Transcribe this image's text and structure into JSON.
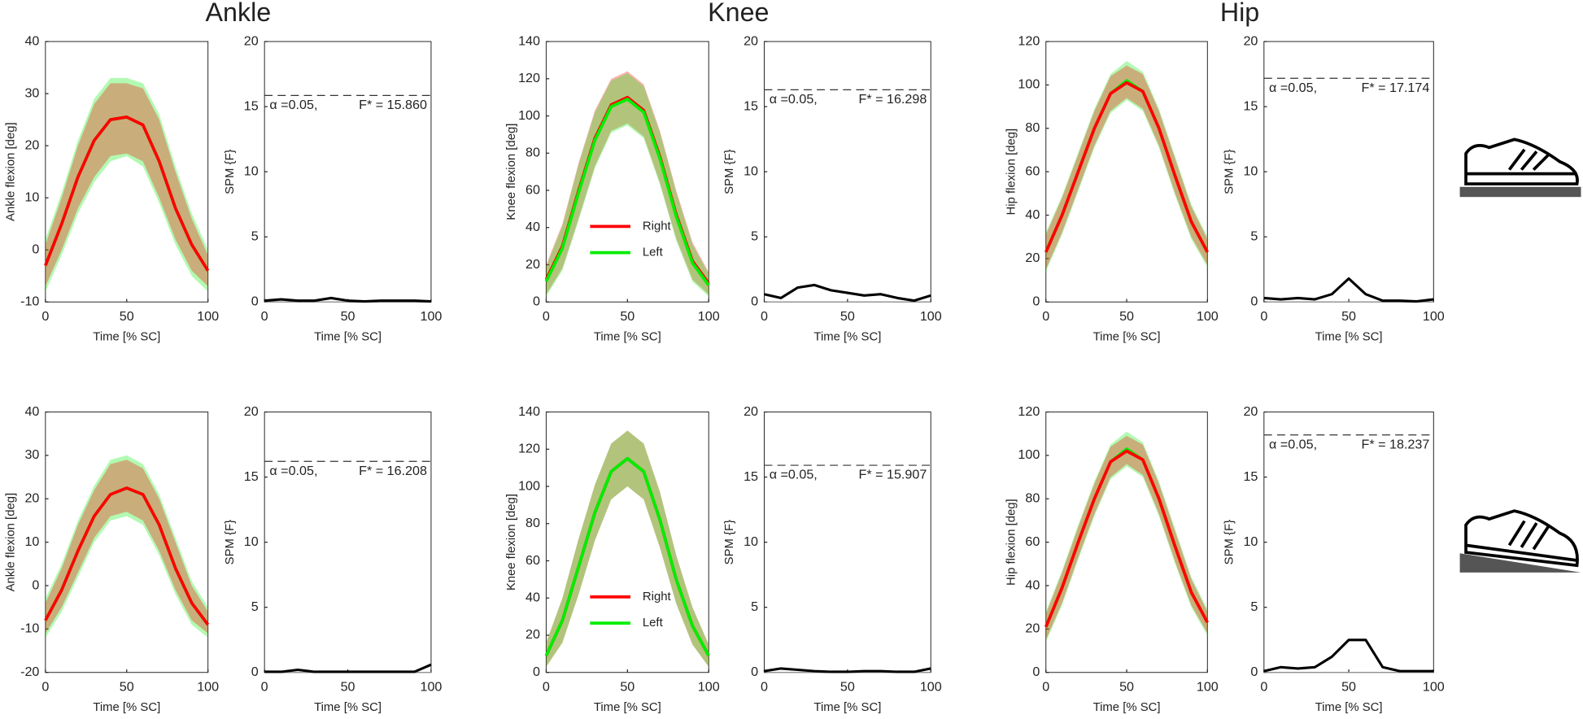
{
  "columns": [
    "Ankle",
    "Knee",
    "Hip"
  ],
  "chart_data": [
    {
      "type": "line",
      "xlabel": "Time [% SC]",
      "ylabel": "Ankle flexion [deg]",
      "xlim": [
        0,
        100
      ],
      "ylim": [
        -10,
        40
      ],
      "xticks": [
        0,
        50,
        100
      ],
      "yticks": [
        -10,
        0,
        10,
        20,
        30,
        40
      ],
      "x": [
        0,
        10,
        20,
        30,
        40,
        50,
        60,
        70,
        80,
        90,
        100
      ],
      "series": [
        {
          "color": "#00ee00",
          "values": [
            -3,
            5,
            14,
            21,
            25,
            25.5,
            24,
            17,
            8,
            1,
            -4
          ],
          "upper": [
            2,
            11,
            21,
            29,
            33,
            33,
            32,
            26,
            16,
            7,
            0
          ],
          "lower": [
            -8,
            -1,
            7,
            13,
            17,
            18,
            16,
            9,
            1,
            -5,
            -8
          ]
        },
        {
          "color": "#ff0000",
          "values": [
            -3,
            5,
            14,
            21,
            25,
            25.5,
            24,
            17,
            8,
            1,
            -4
          ],
          "upper": [
            1,
            10,
            20,
            28,
            32,
            32,
            31,
            25,
            15,
            6,
            -1
          ],
          "lower": [
            -7,
            0,
            8,
            14,
            18,
            18.5,
            17,
            10,
            2,
            -4,
            -7
          ]
        }
      ]
    },
    {
      "type": "spm",
      "xlabel": "Time [% SC]",
      "ylabel": "SPM {F}",
      "xlim": [
        0,
        100
      ],
      "ylim": [
        0,
        20
      ],
      "xticks": [
        0,
        50,
        100
      ],
      "yticks": [
        0,
        5,
        10,
        15,
        20
      ],
      "x": [
        0,
        10,
        20,
        30,
        40,
        50,
        60,
        70,
        80,
        90,
        100
      ],
      "values": [
        0.1,
        0.2,
        0.1,
        0.1,
        0.3,
        0.1,
        0.05,
        0.1,
        0.1,
        0.1,
        0.05
      ],
      "threshold": 15.86,
      "threshold_label": "F* = 15.860",
      "alpha_label": "α =0.05,"
    },
    {
      "type": "line",
      "xlabel": "Time [% SC]",
      "ylabel": "Knee flexion [deg]",
      "xlim": [
        0,
        100
      ],
      "ylim": [
        0,
        140
      ],
      "xticks": [
        0,
        50,
        100
      ],
      "yticks": [
        0,
        20,
        40,
        60,
        80,
        100,
        120,
        140
      ],
      "x": [
        0,
        10,
        20,
        30,
        40,
        50,
        60,
        70,
        80,
        90,
        100
      ],
      "legend": "lower left",
      "series": [
        {
          "name": "Right",
          "color": "#ff0000",
          "values": [
            12,
            30,
            60,
            88,
            106,
            110,
            103,
            78,
            47,
            22,
            10
          ],
          "upper": [
            20,
            42,
            75,
            103,
            120,
            124,
            117,
            92,
            60,
            32,
            16
          ],
          "lower": [
            4,
            18,
            45,
            73,
            92,
            96,
            89,
            64,
            34,
            12,
            4
          ]
        },
        {
          "name": "Left",
          "color": "#00ee00",
          "values": [
            11,
            29,
            59,
            87,
            105,
            109,
            102,
            77,
            46,
            21,
            9
          ],
          "upper": [
            19,
            41,
            74,
            102,
            119,
            123,
            116,
            91,
            59,
            31,
            15
          ],
          "lower": [
            3,
            17,
            44,
            72,
            91,
            95,
            88,
            63,
            33,
            11,
            3
          ]
        }
      ]
    },
    {
      "type": "spm",
      "xlabel": "Time [% SC]",
      "ylabel": "SPM {F}",
      "xlim": [
        0,
        100
      ],
      "ylim": [
        0,
        20
      ],
      "xticks": [
        0,
        50,
        100
      ],
      "yticks": [
        0,
        5,
        10,
        15,
        20
      ],
      "x": [
        0,
        10,
        20,
        30,
        40,
        50,
        60,
        70,
        80,
        90,
        100
      ],
      "values": [
        0.6,
        0.3,
        1.1,
        1.3,
        0.9,
        0.7,
        0.5,
        0.6,
        0.3,
        0.1,
        0.5
      ],
      "threshold": 16.298,
      "threshold_label": "F* = 16.298",
      "alpha_label": "α =0.05,"
    },
    {
      "type": "line",
      "xlabel": "Time [% SC]",
      "ylabel": "Hip flexion [deg]",
      "xlim": [
        0,
        100
      ],
      "ylim": [
        0,
        120
      ],
      "xticks": [
        0,
        50,
        100
      ],
      "yticks": [
        0,
        20,
        40,
        60,
        80,
        100,
        120
      ],
      "x": [
        0,
        10,
        20,
        30,
        40,
        50,
        60,
        70,
        80,
        90,
        100
      ],
      "series": [
        {
          "color": "#00ee00",
          "values": [
            23,
            40,
            60,
            80,
            96,
            102,
            97,
            80,
            58,
            37,
            23
          ],
          "upper": [
            32,
            49,
            69,
            89,
            105,
            111,
            106,
            89,
            67,
            45,
            30
          ],
          "lower": [
            14,
            31,
            51,
            71,
            87,
            93,
            88,
            71,
            49,
            29,
            16
          ]
        },
        {
          "color": "#ff0000",
          "values": [
            23,
            40,
            60,
            80,
            96,
            101,
            97,
            80,
            58,
            37,
            23
          ],
          "upper": [
            31,
            48,
            68,
            88,
            104,
            109,
            105,
            88,
            66,
            44,
            29
          ],
          "lower": [
            15,
            32,
            52,
            72,
            88,
            94,
            89,
            72,
            50,
            30,
            17
          ]
        }
      ]
    },
    {
      "type": "spm",
      "xlabel": "Time [% SC]",
      "ylabel": "SPM {F}",
      "xlim": [
        0,
        100
      ],
      "ylim": [
        0,
        20
      ],
      "xticks": [
        0,
        50,
        100
      ],
      "yticks": [
        0,
        5,
        10,
        15,
        20
      ],
      "x": [
        0,
        10,
        20,
        30,
        40,
        50,
        60,
        70,
        80,
        90,
        100
      ],
      "values": [
        0.3,
        0.2,
        0.3,
        0.2,
        0.6,
        1.8,
        0.6,
        0.1,
        0.1,
        0.05,
        0.2
      ],
      "threshold": 17.174,
      "threshold_label": "F* = 17.174",
      "alpha_label": "α =0.05,"
    },
    {
      "type": "line",
      "xlabel": "Time [% SC]",
      "ylabel": "Ankle flexion [deg]",
      "xlim": [
        0,
        100
      ],
      "ylim": [
        -20,
        40
      ],
      "xticks": [
        0,
        50,
        100
      ],
      "yticks": [
        -20,
        -10,
        0,
        10,
        20,
        30,
        40
      ],
      "x": [
        0,
        10,
        20,
        30,
        40,
        50,
        60,
        70,
        80,
        90,
        100
      ],
      "series": [
        {
          "color": "#00ee00",
          "values": [
            -8,
            -1,
            8,
            16,
            21,
            22.5,
            21,
            14,
            4,
            -4,
            -9
          ],
          "upper": [
            -3,
            5,
            15,
            23,
            29,
            30,
            28,
            21,
            11,
            1,
            -5
          ],
          "lower": [
            -12,
            -6,
            2,
            10,
            15,
            16,
            14,
            7,
            -2,
            -9,
            -12
          ]
        },
        {
          "color": "#ff0000",
          "values": [
            -8,
            -1,
            8,
            16,
            21,
            22.5,
            21,
            14,
            4,
            -4,
            -9
          ],
          "upper": [
            -4,
            4,
            14,
            22,
            28,
            29,
            27,
            20,
            10,
            0,
            -6
          ],
          "lower": [
            -11,
            -5,
            3,
            11,
            16,
            17,
            15,
            8,
            -1,
            -8,
            -11
          ]
        }
      ]
    },
    {
      "type": "spm",
      "xlabel": "Time [% SC]",
      "ylabel": "SPM {F}",
      "xlim": [
        0,
        100
      ],
      "ylim": [
        0,
        20
      ],
      "xticks": [
        0,
        50,
        100
      ],
      "yticks": [
        0,
        5,
        10,
        15,
        20
      ],
      "x": [
        0,
        10,
        20,
        30,
        40,
        50,
        60,
        70,
        80,
        90,
        100
      ],
      "values": [
        0.05,
        0.05,
        0.2,
        0.05,
        0.05,
        0.05,
        0.05,
        0.05,
        0.05,
        0.05,
        0.6
      ],
      "threshold": 16.208,
      "threshold_label": "F* = 16.208",
      "alpha_label": "α =0.05,"
    },
    {
      "type": "line",
      "xlabel": "Time [% SC]",
      "ylabel": "Knee flexion [deg]",
      "xlim": [
        0,
        100
      ],
      "ylim": [
        0,
        140
      ],
      "xticks": [
        0,
        50,
        100
      ],
      "yticks": [
        0,
        20,
        40,
        60,
        80,
        100,
        120,
        140
      ],
      "x": [
        0,
        10,
        20,
        30,
        40,
        50,
        60,
        70,
        80,
        90,
        100
      ],
      "legend": "lower left",
      "series": [
        {
          "name": "Right",
          "color": "#ff0000",
          "values": [
            9,
            28,
            57,
            86,
            108,
            115,
            108,
            82,
            50,
            25,
            9
          ],
          "upper": [
            16,
            40,
            72,
            101,
            123,
            130,
            123,
            97,
            63,
            35,
            15
          ],
          "lower": [
            3,
            16,
            42,
            71,
            93,
            100,
            93,
            67,
            37,
            15,
            3
          ]
        },
        {
          "name": "Left",
          "color": "#00ee00",
          "values": [
            9,
            28,
            57,
            86,
            108,
            115,
            108,
            82,
            50,
            25,
            9
          ],
          "upper": [
            16,
            40,
            72,
            101,
            123,
            130,
            123,
            97,
            63,
            35,
            15
          ],
          "lower": [
            3,
            16,
            42,
            71,
            93,
            100,
            93,
            67,
            37,
            15,
            3
          ]
        }
      ]
    },
    {
      "type": "spm",
      "xlabel": "Time [% SC]",
      "ylabel": "SPM {F}",
      "xlim": [
        0,
        100
      ],
      "ylim": [
        0,
        20
      ],
      "xticks": [
        0,
        50,
        100
      ],
      "yticks": [
        0,
        5,
        10,
        15,
        20
      ],
      "x": [
        0,
        10,
        20,
        30,
        40,
        50,
        60,
        70,
        80,
        90,
        100
      ],
      "values": [
        0.1,
        0.3,
        0.2,
        0.1,
        0.05,
        0.05,
        0.1,
        0.1,
        0.05,
        0.05,
        0.3
      ],
      "threshold": 15.907,
      "threshold_label": "F* = 15.907",
      "alpha_label": "α =0.05,"
    },
    {
      "type": "line",
      "xlabel": "Time [% SC]",
      "ylabel": "Hip flexion [deg]",
      "xlim": [
        0,
        100
      ],
      "ylim": [
        0,
        120
      ],
      "xticks": [
        0,
        50,
        100
      ],
      "yticks": [
        0,
        20,
        40,
        60,
        80,
        100,
        120
      ],
      "x": [
        0,
        10,
        20,
        30,
        40,
        50,
        60,
        70,
        80,
        90,
        100
      ],
      "series": [
        {
          "color": "#00ee00",
          "values": [
            21,
            39,
            60,
            80,
            97,
            103,
            98,
            80,
            58,
            37,
            23
          ],
          "upper": [
            28,
            47,
            68,
            88,
            105,
            111,
            106,
            88,
            66,
            44,
            29
          ],
          "lower": [
            14,
            31,
            52,
            72,
            89,
            95,
            90,
            72,
            50,
            30,
            17
          ]
        },
        {
          "color": "#ff0000",
          "values": [
            21,
            39,
            60,
            80,
            97,
            102,
            98,
            80,
            58,
            37,
            23
          ],
          "upper": [
            27,
            46,
            67,
            87,
            104,
            109,
            105,
            87,
            65,
            43,
            28
          ],
          "lower": [
            15,
            32,
            53,
            73,
            90,
            96,
            91,
            73,
            51,
            31,
            18
          ]
        }
      ]
    },
    {
      "type": "spm",
      "xlabel": "Time [% SC]",
      "ylabel": "SPM {F}",
      "xlim": [
        0,
        100
      ],
      "ylim": [
        0,
        20
      ],
      "xticks": [
        0,
        50,
        100
      ],
      "yticks": [
        0,
        5,
        10,
        15,
        20
      ],
      "x": [
        0,
        10,
        20,
        30,
        40,
        50,
        60,
        70,
        80,
        90,
        100
      ],
      "values": [
        0.1,
        0.4,
        0.3,
        0.4,
        1.2,
        2.5,
        2.5,
        0.4,
        0.1,
        0.1,
        0.1
      ],
      "threshold": 18.237,
      "threshold_label": "F* = 18.237",
      "alpha_label": "α =0.05,"
    }
  ]
}
